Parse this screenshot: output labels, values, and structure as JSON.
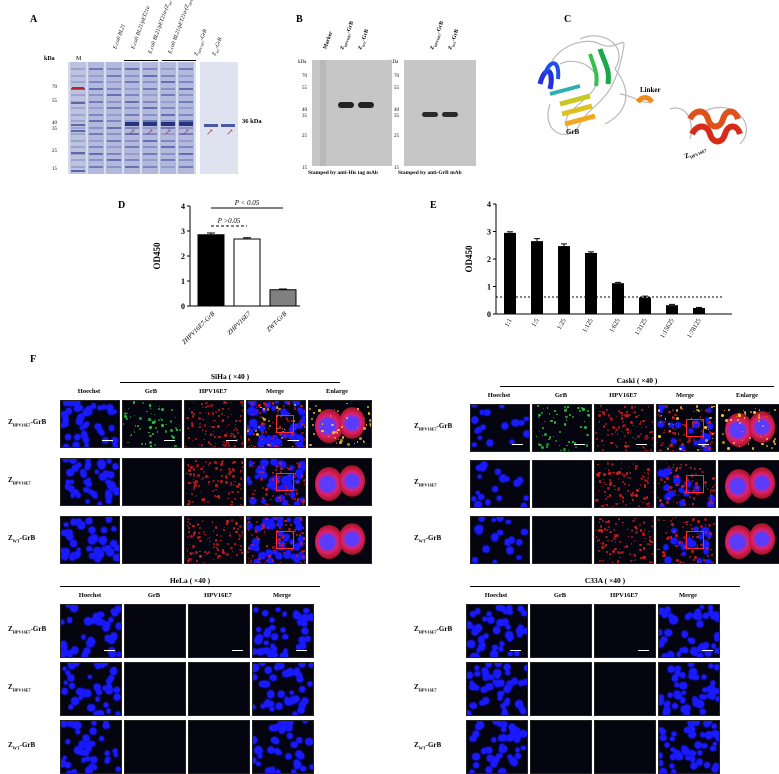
{
  "panels": {
    "a": "A",
    "b": "B",
    "c": "C",
    "d": "D",
    "e": "E",
    "f": "F"
  },
  "gel_a": {
    "kda_label": "kDa",
    "marker_label": "M",
    "ticks": [
      "70",
      "55",
      "40",
      "35",
      "25",
      "15"
    ],
    "lanes": [
      "E.coli BL21",
      "E.coli BL21/pET21a",
      "E.coli BL21/pET21a-(Z",
      "E.coli BL21/pET21a-(Z",
      "Z",
      "Z"
    ],
    "lane_subs": [
      "",
      "",
      "WT",
      "HPV16E7",
      "HPV16E7",
      "WT"
    ],
    "lane_suffix": [
      "",
      "",
      "-GrB)",
      "-GrB)",
      "-GrB",
      "-GrB"
    ],
    "band_label": "36 kDa"
  },
  "western_b": {
    "kda": "kDa",
    "ticks": [
      "70",
      "55",
      "40",
      "35",
      "25",
      "15"
    ],
    "left_lanes": [
      "Marker",
      "Z",
      "Z"
    ],
    "left_subs": [
      "",
      "HPV16E7",
      "WT"
    ],
    "right_lanes": [
      "Z",
      "Z"
    ],
    "right_subs": [
      "HPV16E7",
      "WT"
    ],
    "lane_suffix": "-GrB",
    "caption_left": "Stamped by anti-His tag  mAb",
    "caption_right": "Stamped by anti-GrB mAb"
  },
  "structure_c": {
    "linker": "Linker",
    "grb": "GrB",
    "z": "Z",
    "z_sub": "HPV16E7"
  },
  "chart_d": {
    "ylabel": "OD450",
    "p1": "P < 0.05",
    "p2": "P >0.05",
    "yticks": [
      "0",
      "1",
      "2",
      "3",
      "4"
    ]
  },
  "chart_e": {
    "ylabel": "OD450",
    "yticks": [
      "0",
      "1",
      "2",
      "3",
      "4"
    ]
  },
  "chart_data": [
    {
      "type": "bar",
      "categories": [
        "ZHPV16E7-GrB",
        "ZHPV16E7",
        "ZWT-GrB"
      ],
      "values": [
        2.85,
        2.68,
        0.65
      ],
      "errors": [
        0.07,
        0.05,
        0.03
      ],
      "fills": [
        "#000000",
        "#ffffff",
        "#808080"
      ],
      "ylabel": "OD450",
      "ylim": [
        0,
        4
      ]
    },
    {
      "type": "bar",
      "categories": [
        "1:1",
        "1:5",
        "1:25",
        "1:125",
        "1:625",
        "1:3125",
        "1:15625",
        "1:78125"
      ],
      "values": [
        2.95,
        2.65,
        2.47,
        2.22,
        1.12,
        0.6,
        0.32,
        0.22
      ],
      "errors": [
        0.04,
        0.09,
        0.08,
        0.04,
        0.03,
        0.05,
        0.03,
        0.02
      ],
      "cutoff": 0.62,
      "ylabel": "OD450",
      "ylim": [
        0,
        4
      ]
    }
  ],
  "panel_f": {
    "siha_title": "SiHa ( ×40 )",
    "caski_title": "Caski ( ×40 )",
    "hela_title": "HeLa ( ×40 )",
    "c33a_title": "C33A ( ×40 )",
    "cols5": [
      "Hoechst",
      "GrB",
      "HPV16E7",
      "Merge",
      "Enlarge"
    ],
    "cols4": [
      "Hoechst",
      "GrB",
      "HPV16E7",
      "Merge"
    ],
    "rows": [
      {
        "z": "Z",
        "sub": "HPV16E7",
        "suffix": "-GrB"
      },
      {
        "z": "Z",
        "sub": "HPV16E7",
        "suffix": ""
      },
      {
        "z": "Z",
        "sub": "WT",
        "suffix": "-GrB"
      }
    ]
  },
  "colors": {
    "nucleus": "#1a1aff",
    "grb": "#2ecc40",
    "e7": "#d81c1c",
    "box": "#ff2a2a",
    "gel": "#d7dced"
  }
}
